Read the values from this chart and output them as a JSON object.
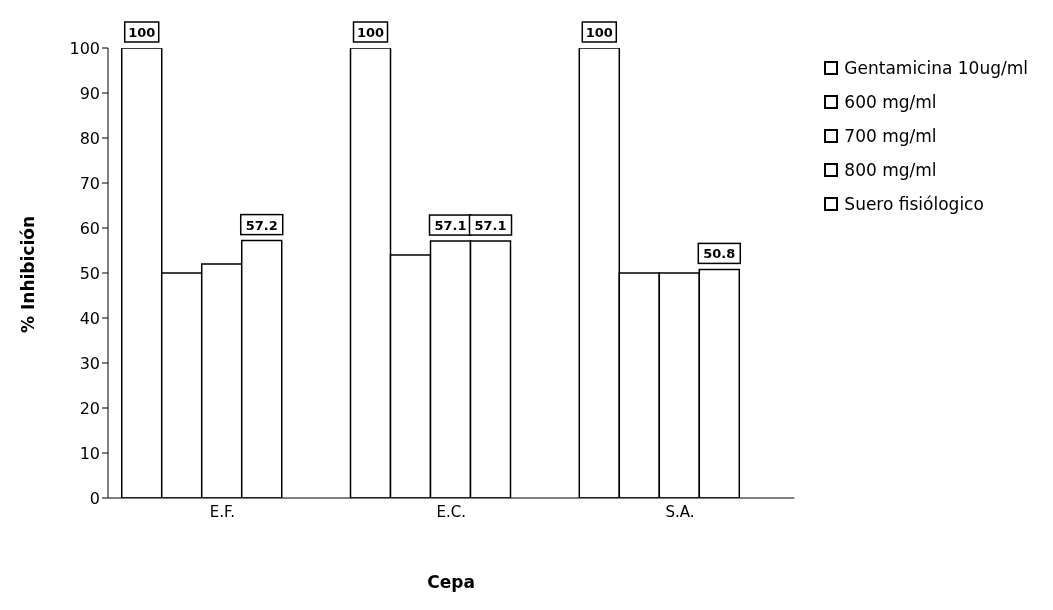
{
  "chart_data": {
    "type": "bar",
    "xlabel": "Cepa",
    "ylabel": "% Inhibición",
    "categories": [
      "E.F.",
      "E.C.",
      "S.A."
    ],
    "series": [
      {
        "name": "Gentamicina 10ug/ml",
        "color": "#ffffff",
        "values": [
          100,
          100,
          100
        ],
        "value_labels": [
          "100",
          "100",
          "100"
        ]
      },
      {
        "name": "600 mg/ml",
        "color": "#ffffff",
        "values": [
          50,
          54,
          50
        ],
        "value_labels": [
          null,
          null,
          null
        ]
      },
      {
        "name": "700 mg/ml",
        "color": "#ffffff",
        "values": [
          52,
          57.1,
          50
        ],
        "value_labels": [
          null,
          "57.1",
          null
        ]
      },
      {
        "name": "800 mg/ml",
        "color": "#ffffff",
        "values": [
          57.2,
          57.1,
          50.8
        ],
        "value_labels": [
          "57.2",
          "57.1",
          "50.8"
        ]
      },
      {
        "name": "Suero fisiólogico",
        "color": "#ffffff",
        "values": [
          0,
          0,
          0
        ],
        "value_labels": [
          null,
          null,
          null
        ]
      }
    ],
    "ylim": [
      0,
      100
    ],
    "yticks": [
      0,
      10,
      20,
      30,
      40,
      50,
      60,
      70,
      80,
      90,
      100
    ],
    "grid": false,
    "legend": "right"
  }
}
